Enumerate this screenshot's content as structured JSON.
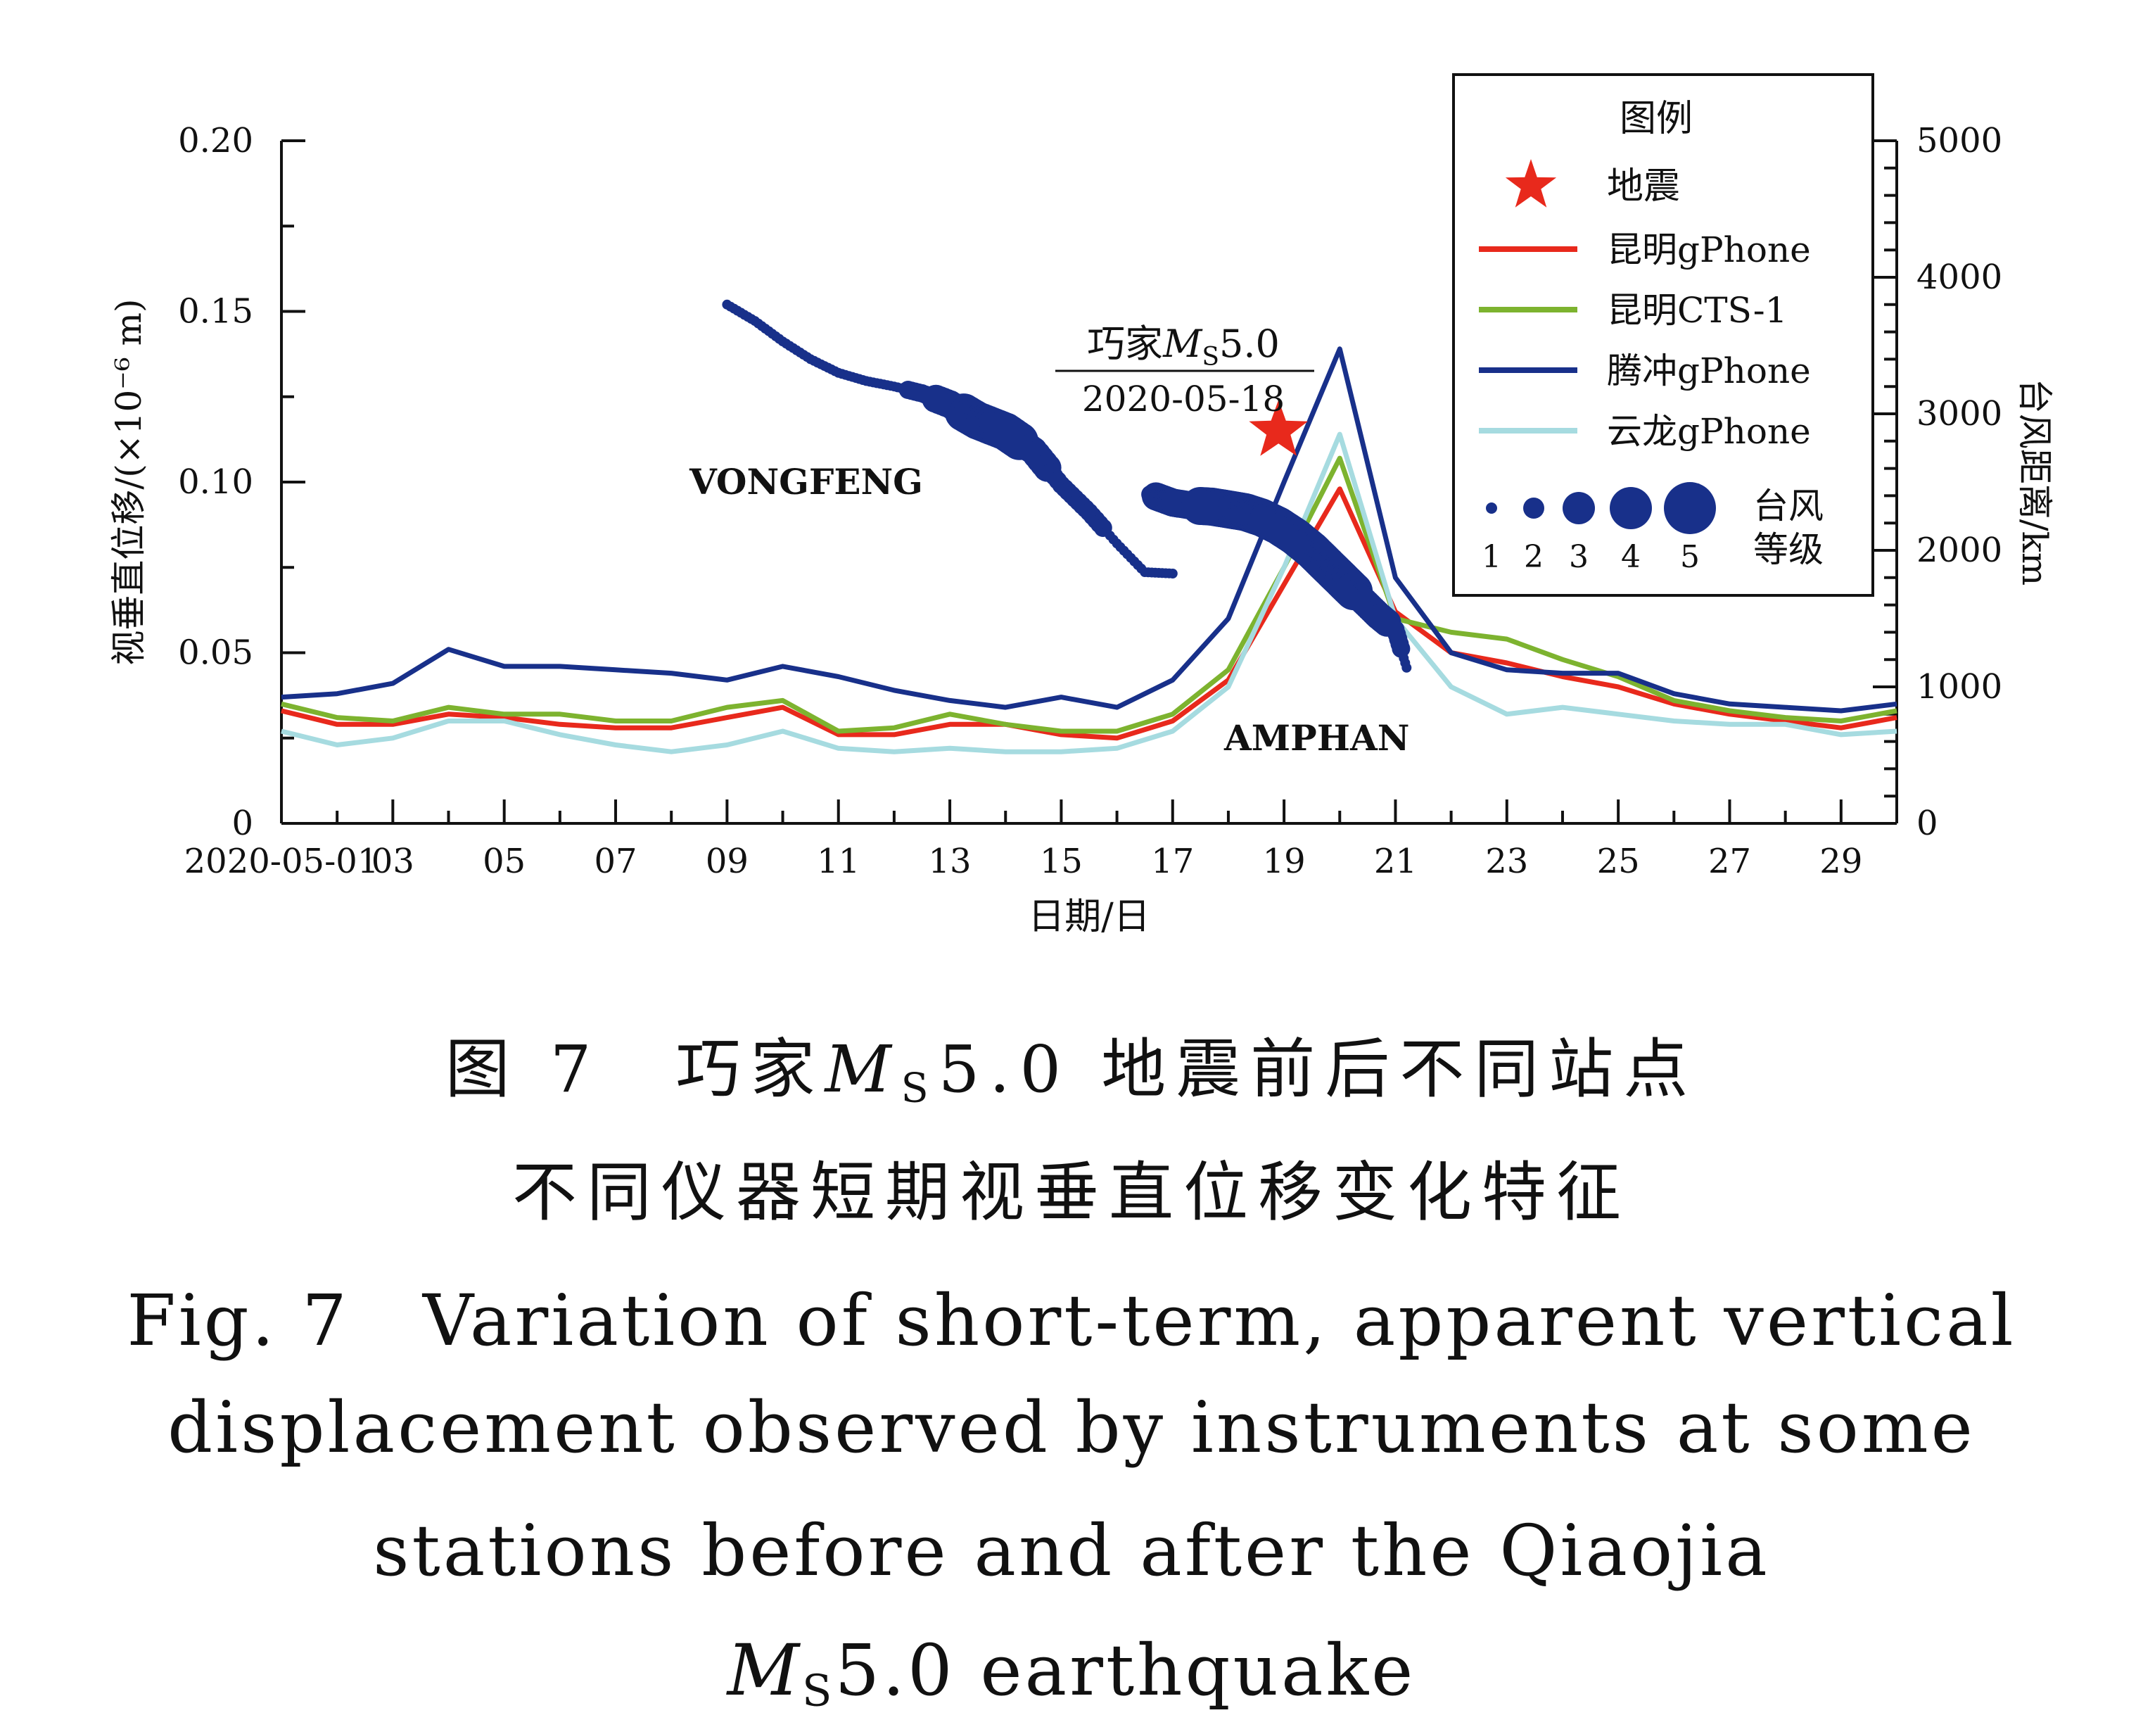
{
  "chart_data": {
    "type": "line",
    "x": [
      "2020-05-01",
      "02",
      "03",
      "04",
      "05",
      "06",
      "07",
      "08",
      "09",
      "10",
      "11",
      "12",
      "13",
      "14",
      "15",
      "16",
      "17",
      "18",
      "19",
      "20",
      "21",
      "22",
      "23",
      "24",
      "25",
      "26",
      "27",
      "28",
      "29",
      "30"
    ],
    "xtick_labels": [
      "2020-05-01",
      "03",
      "05",
      "07",
      "09",
      "11",
      "13",
      "15",
      "17",
      "19",
      "21",
      "23",
      "25",
      "27",
      "29"
    ],
    "xlabel": "日期/日",
    "ylabel": "视垂直位移/(×10⁻⁶ m)",
    "ylim": [
      0,
      0.2
    ],
    "ytick_labels": [
      "0",
      "0.05",
      "0.10",
      "0.15",
      "0.20"
    ],
    "y2label": "台风距离/km",
    "y2lim": [
      0,
      5000
    ],
    "y2tick_labels": [
      "0",
      "1000",
      "2000",
      "3000",
      "4000",
      "5000"
    ],
    "series": [
      {
        "name": "昆明gPhone",
        "color": "#e8291c",
        "values": [
          0.033,
          0.029,
          0.029,
          0.032,
          0.031,
          0.029,
          0.028,
          0.028,
          0.031,
          0.034,
          0.026,
          0.026,
          0.029,
          0.029,
          0.026,
          0.025,
          0.03,
          0.042,
          0.07,
          0.098,
          0.062,
          0.05,
          0.047,
          0.043,
          0.04,
          0.035,
          0.032,
          0.03,
          0.028,
          0.031
        ]
      },
      {
        "name": "昆明CTS-1",
        "color": "#7db32f",
        "values": [
          0.035,
          0.031,
          0.03,
          0.034,
          0.032,
          0.032,
          0.03,
          0.03,
          0.034,
          0.036,
          0.027,
          0.028,
          0.032,
          0.029,
          0.027,
          0.027,
          0.032,
          0.045,
          0.075,
          0.107,
          0.06,
          0.056,
          0.054,
          0.048,
          0.043,
          0.036,
          0.033,
          0.031,
          0.03,
          0.033
        ]
      },
      {
        "name": "腾冲gPhone",
        "color": "#18308a",
        "values": [
          0.037,
          0.038,
          0.041,
          0.051,
          0.046,
          0.046,
          0.045,
          0.044,
          0.042,
          0.046,
          0.043,
          0.039,
          0.036,
          0.034,
          0.037,
          0.034,
          0.042,
          0.06,
          0.1,
          0.139,
          0.072,
          0.05,
          0.045,
          0.044,
          0.044,
          0.038,
          0.035,
          0.034,
          0.033,
          0.035
        ]
      },
      {
        "name": "云龙gPhone",
        "color": "#a6dbe0",
        "values": [
          0.027,
          0.023,
          0.025,
          0.03,
          0.03,
          0.026,
          0.023,
          0.021,
          0.023,
          0.027,
          0.022,
          0.021,
          0.022,
          0.021,
          0.021,
          0.022,
          0.027,
          0.04,
          0.075,
          0.114,
          0.06,
          0.04,
          0.032,
          0.034,
          0.032,
          0.03,
          0.029,
          0.029,
          0.026,
          0.027
        ]
      }
    ],
    "typhoon_tracks": [
      {
        "name": "VONGFENG",
        "t": [
          9.0,
          9.5,
          10.0,
          10.5,
          11.0,
          11.5,
          12.0,
          12.5,
          13.0,
          13.5,
          14.0,
          14.5,
          15.0,
          15.5,
          16.0,
          16.5,
          17.0
        ],
        "distance_km": [
          3800,
          3680,
          3530,
          3400,
          3300,
          3240,
          3200,
          3150,
          3070,
          2950,
          2870,
          2730,
          2480,
          2280,
          2050,
          1840,
          1830
        ],
        "intensity": [
          1,
          1,
          1,
          1,
          1,
          1,
          1,
          2,
          3,
          4,
          4,
          3,
          2,
          2,
          1,
          1,
          1
        ]
      },
      {
        "name": "AMPHAN",
        "t": [
          16.6,
          16.8,
          17.0,
          17.3,
          17.7,
          18.0,
          18.3,
          18.6,
          18.9,
          19.2,
          19.5,
          19.8,
          20.1,
          20.4,
          20.7,
          21.0,
          21.2
        ],
        "distance_km": [
          2410,
          2380,
          2350,
          2330,
          2320,
          2300,
          2280,
          2240,
          2180,
          2100,
          2000,
          1880,
          1760,
          1640,
          1520,
          1420,
          1140
        ],
        "intensity": [
          2,
          3,
          3,
          3,
          4,
          4,
          4,
          4,
          4,
          4,
          4,
          4,
          4,
          3,
          3,
          2,
          1
        ]
      }
    ],
    "earthquake": {
      "t": 18.9,
      "value": 0.115,
      "color": "#e8291c",
      "label_line1_prefix": "巧家",
      "label_M": "M",
      "label_sub": "S",
      "label_mag": "5.0",
      "label_line2": "2020-05-18"
    },
    "legend": {
      "title": "图例",
      "earthquake_label": "地震",
      "typhoon_label_line1": "台风",
      "typhoon_label_line2": "等级",
      "size_labels": [
        "1",
        "2",
        "3",
        "4",
        "5"
      ],
      "placement": "top-right"
    },
    "grid": false
  },
  "caption": {
    "cn_line1_prefix": "图 7　巧家",
    "cn_M": "M",
    "cn_sub": "S",
    "cn_line1_suffix": "5.0 地震前后不同站点",
    "cn_line2": "不同仪器短期视垂直位移变化特征",
    "en_line1": "Fig. 7　Variation of short-term,  apparent vertical",
    "en_line2": "displacement observed by instruments at some",
    "en_line3": "stations before and after the Qiaojia",
    "en_M": "M",
    "en_sub": "S",
    "en_line4_suffix": "5.0 earthquake"
  }
}
